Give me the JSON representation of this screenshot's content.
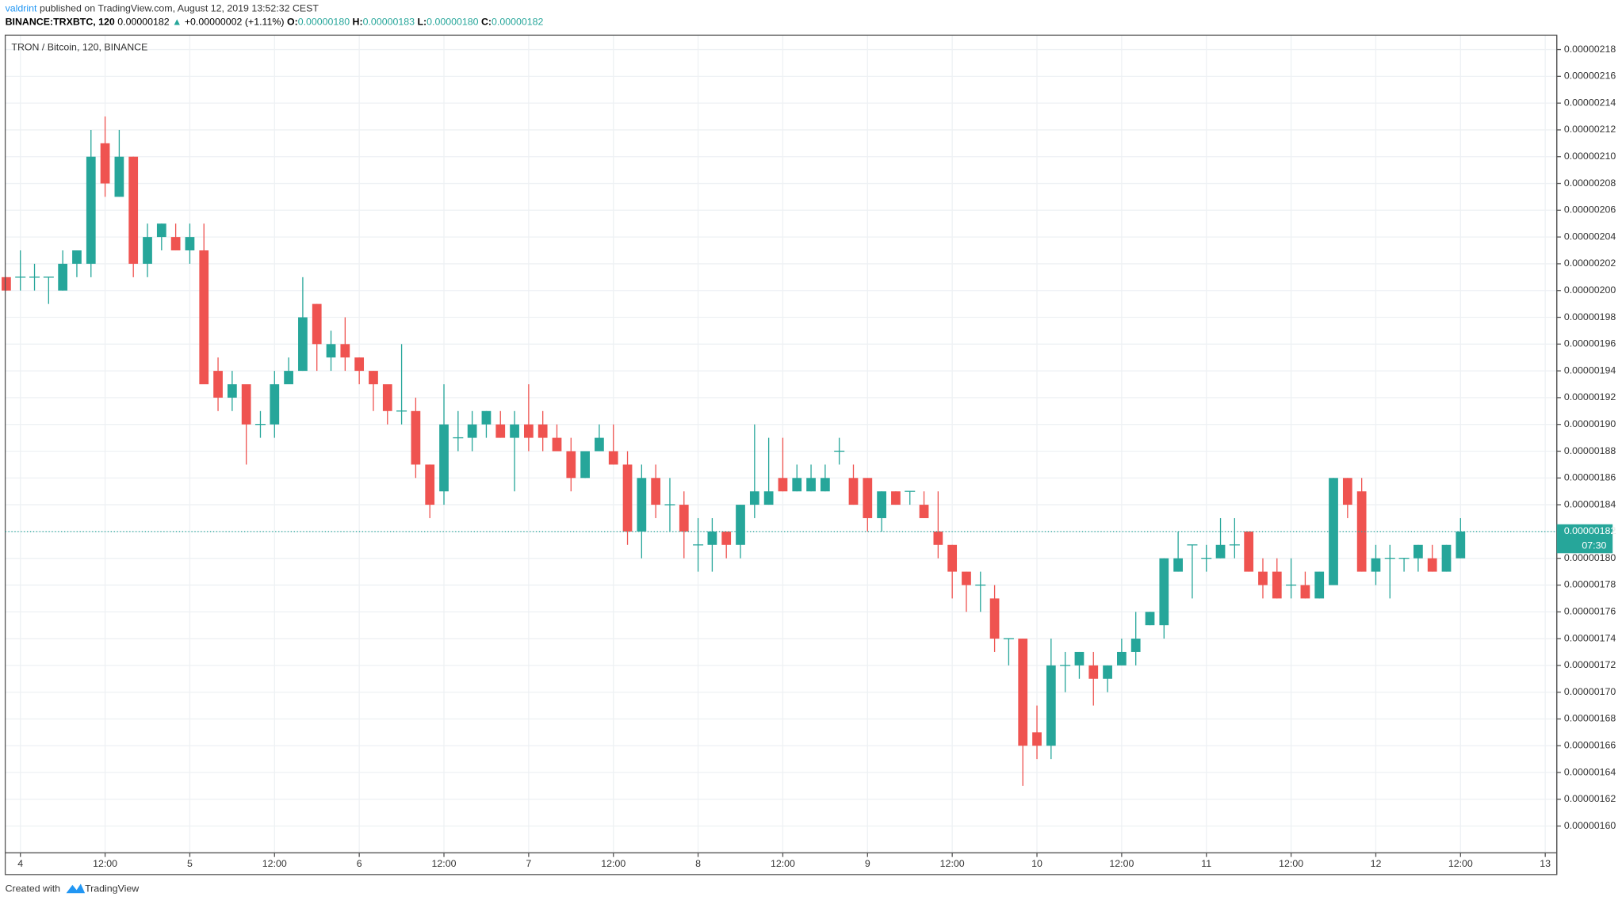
{
  "header": {
    "author": "valdrint",
    "published": "published on TradingView.com, August 12, 2019 13:52:32 CEST",
    "symbol": "BINANCE:TRXBTC, 120",
    "price": "0.00000182",
    "change_arrow": "▲",
    "change": "+0.00000002 (+1.11%)",
    "o_label": "O:",
    "o_value": "0.00000180",
    "h_label": "H:",
    "h_value": "0.00000183",
    "l_label": "L:",
    "l_value": "0.00000180",
    "c_label": "C:",
    "c_value": "0.00000182"
  },
  "footer": {
    "created": "Created with",
    "brand": "TradingView"
  },
  "chart_data": {
    "type": "candlestick",
    "title": "TRON / Bitcoin, 120, BINANCE",
    "up_color": "#26a69a",
    "down_color": "#ef5350",
    "grid": true,
    "last_price": {
      "value": 1.82e-06,
      "label": "0.00000182"
    },
    "countdown": "07:30",
    "ylim": [
      1.58e-06,
      2.19e-06
    ],
    "yticks": [
      {
        "value": 1.6e-06,
        "label": "0.00000160"
      },
      {
        "value": 1.62e-06,
        "label": "0.00000162"
      },
      {
        "value": 1.64e-06,
        "label": "0.00000164"
      },
      {
        "value": 1.66e-06,
        "label": "0.00000166"
      },
      {
        "value": 1.68e-06,
        "label": "0.00000168"
      },
      {
        "value": 1.7e-06,
        "label": "0.00000170"
      },
      {
        "value": 1.72e-06,
        "label": "0.00000172"
      },
      {
        "value": 1.74e-06,
        "label": "0.00000174"
      },
      {
        "value": 1.76e-06,
        "label": "0.00000176"
      },
      {
        "value": 1.78e-06,
        "label": "0.00000178"
      },
      {
        "value": 1.8e-06,
        "label": "0.00000180"
      },
      {
        "value": 1.82e-06,
        "label": "0.00000182"
      },
      {
        "value": 1.84e-06,
        "label": "0.00000184"
      },
      {
        "value": 1.86e-06,
        "label": "0.00000186"
      },
      {
        "value": 1.88e-06,
        "label": "0.00000188"
      },
      {
        "value": 1.9e-06,
        "label": "0.00000190"
      },
      {
        "value": 1.92e-06,
        "label": "0.00000192"
      },
      {
        "value": 1.94e-06,
        "label": "0.00000194"
      },
      {
        "value": 1.96e-06,
        "label": "0.00000196"
      },
      {
        "value": 1.98e-06,
        "label": "0.00000198"
      },
      {
        "value": 2e-06,
        "label": "0.00000200"
      },
      {
        "value": 2.02e-06,
        "label": "0.00000202"
      },
      {
        "value": 2.04e-06,
        "label": "0.00000204"
      },
      {
        "value": 2.06e-06,
        "label": "0.00000206"
      },
      {
        "value": 2.08e-06,
        "label": "0.00000208"
      },
      {
        "value": 2.1e-06,
        "label": "0.00000210"
      },
      {
        "value": 2.12e-06,
        "label": "0.00000212"
      },
      {
        "value": 2.14e-06,
        "label": "0.00000214"
      },
      {
        "value": 2.16e-06,
        "label": "0.00000216"
      },
      {
        "value": 2.18e-06,
        "label": "0.00000218"
      }
    ],
    "xticks": [
      {
        "value": 1,
        "label": "4"
      },
      {
        "value": 7,
        "label": "12:00"
      },
      {
        "value": 13,
        "label": "5"
      },
      {
        "value": 19,
        "label": "12:00"
      },
      {
        "value": 25,
        "label": "6"
      },
      {
        "value": 31,
        "label": "12:00"
      },
      {
        "value": 37,
        "label": "7"
      },
      {
        "value": 43,
        "label": "12:00"
      },
      {
        "value": 49,
        "label": "8"
      },
      {
        "value": 55,
        "label": "12:00"
      },
      {
        "value": 61,
        "label": "9"
      },
      {
        "value": 67,
        "label": "12:00"
      },
      {
        "value": 73,
        "label": "10"
      },
      {
        "value": 79,
        "label": "12:00"
      },
      {
        "value": 85,
        "label": "11"
      },
      {
        "value": 91,
        "label": "12:00"
      },
      {
        "value": 97,
        "label": "12"
      },
      {
        "value": 103,
        "label": "12:00"
      },
      {
        "value": 109,
        "label": "13"
      }
    ],
    "open": [
      2.01e-06,
      2.01e-06,
      2.01e-06,
      2.01e-06,
      2e-06,
      2.02e-06,
      2.02e-06,
      2.11e-06,
      2.07e-06,
      2.1e-06,
      2.02e-06,
      2.04e-06,
      2.04e-06,
      2.03e-06,
      2.03e-06,
      1.94e-06,
      1.92e-06,
      1.93e-06,
      1.9e-06,
      1.9e-06,
      1.93e-06,
      1.94e-06,
      1.99e-06,
      1.95e-06,
      1.96e-06,
      1.95e-06,
      1.94e-06,
      1.93e-06,
      1.91e-06,
      1.91e-06,
      1.87e-06,
      1.85e-06,
      1.89e-06,
      1.89e-06,
      1.9e-06,
      1.9e-06,
      1.89e-06,
      1.9e-06,
      1.9e-06,
      1.89e-06,
      1.88e-06,
      1.86e-06,
      1.88e-06,
      1.88e-06,
      1.87e-06,
      1.82e-06,
      1.86e-06,
      1.84e-06,
      1.84e-06,
      1.81e-06,
      1.81e-06,
      1.82e-06,
      1.81e-06,
      1.84e-06,
      1.84e-06,
      1.86e-06,
      1.85e-06,
      1.85e-06,
      1.85e-06,
      1.88e-06,
      1.86e-06,
      1.86e-06,
      1.83e-06,
      1.85e-06,
      1.85e-06,
      1.84e-06,
      1.82e-06,
      1.81e-06,
      1.79e-06,
      1.78e-06,
      1.77e-06,
      1.74e-06,
      1.74e-06,
      1.67e-06,
      1.66e-06,
      1.72e-06,
      1.72e-06,
      1.72e-06,
      1.71e-06,
      1.72e-06,
      1.73e-06,
      1.75e-06,
      1.75e-06,
      1.79e-06,
      1.81e-06,
      1.8e-06,
      1.8e-06,
      1.81e-06,
      1.82e-06,
      1.79e-06,
      1.79e-06,
      1.78e-06,
      1.78e-06,
      1.77e-06,
      1.78e-06,
      1.86e-06,
      1.85e-06,
      1.79e-06,
      1.8e-06,
      1.8e-06,
      1.8e-06,
      1.8e-06,
      1.79e-06,
      1.8e-06
    ],
    "high": [
      2.01e-06,
      2.03e-06,
      2.02e-06,
      2.01e-06,
      2.03e-06,
      2.03e-06,
      2.12e-06,
      2.13e-06,
      2.12e-06,
      2.1e-06,
      2.05e-06,
      2.05e-06,
      2.05e-06,
      2.05e-06,
      2.05e-06,
      1.95e-06,
      1.94e-06,
      1.93e-06,
      1.91e-06,
      1.94e-06,
      1.95e-06,
      2.01e-06,
      1.99e-06,
      1.97e-06,
      1.98e-06,
      1.95e-06,
      1.94e-06,
      1.93e-06,
      1.96e-06,
      1.92e-06,
      1.87e-06,
      1.93e-06,
      1.91e-06,
      1.91e-06,
      1.91e-06,
      1.91e-06,
      1.91e-06,
      1.93e-06,
      1.91e-06,
      1.9e-06,
      1.89e-06,
      1.88e-06,
      1.9e-06,
      1.9e-06,
      1.88e-06,
      1.87e-06,
      1.87e-06,
      1.86e-06,
      1.85e-06,
      1.83e-06,
      1.83e-06,
      1.82e-06,
      1.84e-06,
      1.9e-06,
      1.89e-06,
      1.89e-06,
      1.87e-06,
      1.87e-06,
      1.87e-06,
      1.89e-06,
      1.87e-06,
      1.86e-06,
      1.85e-06,
      1.85e-06,
      1.85e-06,
      1.85e-06,
      1.85e-06,
      1.81e-06,
      1.79e-06,
      1.79e-06,
      1.78e-06,
      1.74e-06,
      1.74e-06,
      1.69e-06,
      1.74e-06,
      1.73e-06,
      1.73e-06,
      1.73e-06,
      1.72e-06,
      1.74e-06,
      1.76e-06,
      1.76e-06,
      1.8e-06,
      1.82e-06,
      1.81e-06,
      1.81e-06,
      1.83e-06,
      1.83e-06,
      1.82e-06,
      1.8e-06,
      1.8e-06,
      1.8e-06,
      1.79e-06,
      1.79e-06,
      1.86e-06,
      1.86e-06,
      1.86e-06,
      1.81e-06,
      1.81e-06,
      1.8e-06,
      1.81e-06,
      1.81e-06,
      1.81e-06,
      1.83e-06
    ],
    "low": [
      2e-06,
      2e-06,
      2e-06,
      1.99e-06,
      2e-06,
      2.01e-06,
      2.01e-06,
      2.07e-06,
      2.07e-06,
      2.01e-06,
      2.01e-06,
      2.03e-06,
      2.03e-06,
      2.02e-06,
      1.93e-06,
      1.91e-06,
      1.91e-06,
      1.87e-06,
      1.89e-06,
      1.89e-06,
      1.93e-06,
      1.94e-06,
      1.94e-06,
      1.94e-06,
      1.94e-06,
      1.93e-06,
      1.91e-06,
      1.9e-06,
      1.9e-06,
      1.86e-06,
      1.83e-06,
      1.84e-06,
      1.88e-06,
      1.88e-06,
      1.89e-06,
      1.89e-06,
      1.85e-06,
      1.88e-06,
      1.88e-06,
      1.88e-06,
      1.85e-06,
      1.86e-06,
      1.88e-06,
      1.87e-06,
      1.81e-06,
      1.8e-06,
      1.83e-06,
      1.82e-06,
      1.8e-06,
      1.79e-06,
      1.79e-06,
      1.8e-06,
      1.8e-06,
      1.83e-06,
      1.84e-06,
      1.85e-06,
      1.85e-06,
      1.85e-06,
      1.85e-06,
      1.87e-06,
      1.84e-06,
      1.82e-06,
      1.82e-06,
      1.84e-06,
      1.84e-06,
      1.83e-06,
      1.8e-06,
      1.77e-06,
      1.76e-06,
      1.76e-06,
      1.73e-06,
      1.72e-06,
      1.63e-06,
      1.65e-06,
      1.65e-06,
      1.7e-06,
      1.71e-06,
      1.69e-06,
      1.7e-06,
      1.72e-06,
      1.72e-06,
      1.75e-06,
      1.74e-06,
      1.79e-06,
      1.77e-06,
      1.79e-06,
      1.8e-06,
      1.8e-06,
      1.79e-06,
      1.77e-06,
      1.77e-06,
      1.77e-06,
      1.77e-06,
      1.77e-06,
      1.78e-06,
      1.83e-06,
      1.79e-06,
      1.78e-06,
      1.77e-06,
      1.79e-06,
      1.79e-06,
      1.79e-06,
      1.79e-06,
      1.8e-06
    ],
    "close": [
      2e-06,
      2.01e-06,
      2.01e-06,
      2.01e-06,
      2.02e-06,
      2.03e-06,
      2.1e-06,
      2.08e-06,
      2.1e-06,
      2.02e-06,
      2.04e-06,
      2.05e-06,
      2.03e-06,
      2.04e-06,
      1.93e-06,
      1.92e-06,
      1.93e-06,
      1.9e-06,
      1.9e-06,
      1.93e-06,
      1.94e-06,
      1.98e-06,
      1.96e-06,
      1.96e-06,
      1.95e-06,
      1.94e-06,
      1.93e-06,
      1.91e-06,
      1.91e-06,
      1.87e-06,
      1.84e-06,
      1.9e-06,
      1.89e-06,
      1.9e-06,
      1.91e-06,
      1.89e-06,
      1.9e-06,
      1.89e-06,
      1.89e-06,
      1.88e-06,
      1.86e-06,
      1.88e-06,
      1.89e-06,
      1.87e-06,
      1.82e-06,
      1.86e-06,
      1.84e-06,
      1.84e-06,
      1.82e-06,
      1.81e-06,
      1.82e-06,
      1.81e-06,
      1.84e-06,
      1.85e-06,
      1.85e-06,
      1.85e-06,
      1.86e-06,
      1.86e-06,
      1.86e-06,
      1.88e-06,
      1.84e-06,
      1.83e-06,
      1.85e-06,
      1.84e-06,
      1.85e-06,
      1.83e-06,
      1.81e-06,
      1.79e-06,
      1.78e-06,
      1.78e-06,
      1.74e-06,
      1.74e-06,
      1.66e-06,
      1.66e-06,
      1.72e-06,
      1.72e-06,
      1.73e-06,
      1.71e-06,
      1.72e-06,
      1.73e-06,
      1.74e-06,
      1.76e-06,
      1.8e-06,
      1.8e-06,
      1.81e-06,
      1.8e-06,
      1.81e-06,
      1.81e-06,
      1.79e-06,
      1.78e-06,
      1.77e-06,
      1.78e-06,
      1.77e-06,
      1.79e-06,
      1.86e-06,
      1.84e-06,
      1.79e-06,
      1.8e-06,
      1.8e-06,
      1.8e-06,
      1.81e-06,
      1.79e-06,
      1.81e-06,
      1.82e-06
    ]
  }
}
